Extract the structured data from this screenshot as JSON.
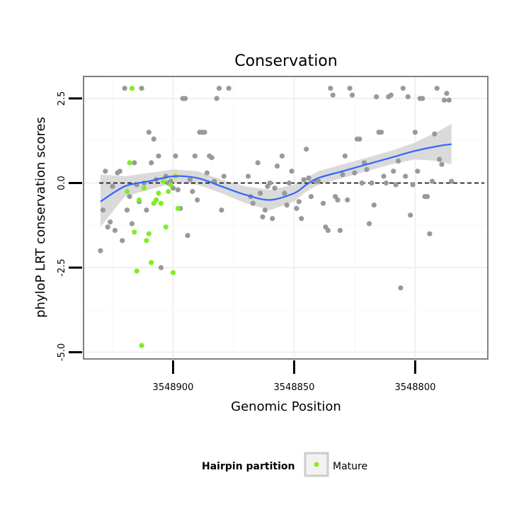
{
  "chart_data": {
    "type": "scatter",
    "title": "Conservation",
    "xlabel": "Genomic Position",
    "ylabel": "phyloP LRT conservation scores",
    "x_reversed": true,
    "xlim": [
      3548937,
      3548770
    ],
    "ylim": [
      -5.2,
      3.15
    ],
    "x_ticks": [
      3548900,
      3548850,
      3548800
    ],
    "x_tick_labels": [
      "3548900",
      "3548850",
      "3548800"
    ],
    "y_ticks": [
      -5.0,
      -2.5,
      0.0,
      2.5
    ],
    "y_tick_labels": [
      "-5.0",
      "-2.5",
      "0.0",
      "2.5"
    ],
    "grid": true,
    "reference_line": {
      "y": 0.0,
      "style": "dashed",
      "color": "#000000"
    },
    "colors": {
      "background_points": "#999999",
      "mature_points": "#80ee22",
      "smooth_line": "#3366ff",
      "confidence_band": "#d3d3d3",
      "panel_border": "#808080",
      "grid": "#f0f0f0"
    },
    "legend": {
      "title": "Hairpin partition",
      "placement": "bottom",
      "entries": [
        {
          "label": "Mature",
          "color": "#80ee22"
        }
      ]
    },
    "series": [
      {
        "color": "#999999",
        "points": [
          [
            3548930,
            -2.0
          ],
          [
            3548929,
            -0.8
          ],
          [
            3548928,
            0.35
          ],
          [
            3548927,
            -1.3
          ],
          [
            3548926,
            -1.15
          ],
          [
            3548925,
            -0.1
          ],
          [
            3548924,
            -1.4
          ],
          [
            3548923,
            0.3
          ],
          [
            3548922,
            0.35
          ],
          [
            3548921,
            -1.7
          ],
          [
            3548920,
            2.8
          ],
          [
            3548919,
            -0.8
          ],
          [
            3548918,
            -0.4
          ],
          [
            3548917,
            -1.2
          ],
          [
            3548916,
            0.6
          ],
          [
            3548915,
            -0.05
          ],
          [
            3548914,
            -0.55
          ],
          [
            3548913,
            2.8
          ],
          [
            3548912,
            0.0
          ],
          [
            3548911,
            -0.8
          ],
          [
            3548910,
            1.5
          ],
          [
            3548909,
            0.6
          ],
          [
            3548908,
            1.3
          ],
          [
            3548907,
            0.1
          ],
          [
            3548906,
            0.8
          ],
          [
            3548905,
            -2.5
          ],
          [
            3548904,
            0.05
          ],
          [
            3548903,
            0.2
          ],
          [
            3548902,
            0.0
          ],
          [
            3548901,
            0.05
          ],
          [
            3548900,
            -0.15
          ],
          [
            3548899,
            0.8
          ],
          [
            3548898,
            -0.2
          ],
          [
            3548897,
            -0.75
          ],
          [
            3548896,
            2.5
          ],
          [
            3548895,
            2.5
          ],
          [
            3548894,
            -1.55
          ],
          [
            3548893,
            0.1
          ],
          [
            3548892,
            -0.25
          ],
          [
            3548891,
            0.8
          ],
          [
            3548890,
            -0.5
          ],
          [
            3548889,
            1.5
          ],
          [
            3548888,
            1.5
          ],
          [
            3548887,
            1.5
          ],
          [
            3548886,
            0.3
          ],
          [
            3548885,
            0.8
          ],
          [
            3548884,
            0.75
          ],
          [
            3548883,
            0.05
          ],
          [
            3548882,
            2.5
          ],
          [
            3548881,
            2.8
          ],
          [
            3548880,
            -0.8
          ],
          [
            3548879,
            0.2
          ],
          [
            3548877,
            2.8
          ],
          [
            3548869,
            0.2
          ],
          [
            3548868,
            -0.4
          ],
          [
            3548867,
            -0.6
          ],
          [
            3548865,
            0.6
          ],
          [
            3548864,
            -0.3
          ],
          [
            3548863,
            -1.0
          ],
          [
            3548862,
            -0.8
          ],
          [
            3548861,
            -0.1
          ],
          [
            3548860,
            0.0
          ],
          [
            3548859,
            -1.05
          ],
          [
            3548858,
            -0.15
          ],
          [
            3548857,
            0.5
          ],
          [
            3548855,
            0.8
          ],
          [
            3548854,
            -0.3
          ],
          [
            3548853,
            -0.65
          ],
          [
            3548852,
            0.0
          ],
          [
            3548851,
            0.35
          ],
          [
            3548849,
            -0.75
          ],
          [
            3548848,
            -0.55
          ],
          [
            3548847,
            -1.05
          ],
          [
            3548846,
            0.1
          ],
          [
            3548845,
            1.0
          ],
          [
            3548844,
            0.15
          ],
          [
            3548843,
            -0.4
          ],
          [
            3548841,
            0.05
          ],
          [
            3548840,
            0.05
          ],
          [
            3548838,
            -0.6
          ],
          [
            3548837,
            -1.3
          ],
          [
            3548836,
            -1.4
          ],
          [
            3548835,
            2.8
          ],
          [
            3548834,
            2.6
          ],
          [
            3548833,
            -0.4
          ],
          [
            3548832,
            -0.5
          ],
          [
            3548831,
            -1.4
          ],
          [
            3548830,
            0.25
          ],
          [
            3548829,
            0.8
          ],
          [
            3548828,
            -0.5
          ],
          [
            3548827,
            2.8
          ],
          [
            3548826,
            2.6
          ],
          [
            3548825,
            0.3
          ],
          [
            3548824,
            1.3
          ],
          [
            3548823,
            1.3
          ],
          [
            3548822,
            0.0
          ],
          [
            3548821,
            0.6
          ],
          [
            3548820,
            0.4
          ],
          [
            3548819,
            -1.2
          ],
          [
            3548818,
            0.0
          ],
          [
            3548817,
            -0.65
          ],
          [
            3548816,
            2.55
          ],
          [
            3548815,
            1.5
          ],
          [
            3548814,
            1.5
          ],
          [
            3548813,
            0.2
          ],
          [
            3548812,
            0.0
          ],
          [
            3548811,
            2.55
          ],
          [
            3548810,
            2.6
          ],
          [
            3548809,
            0.35
          ],
          [
            3548808,
            -0.05
          ],
          [
            3548807,
            0.65
          ],
          [
            3548806,
            -3.1
          ],
          [
            3548805,
            2.8
          ],
          [
            3548804,
            0.2
          ],
          [
            3548803,
            2.55
          ],
          [
            3548802,
            -0.95
          ],
          [
            3548801,
            -0.05
          ],
          [
            3548800,
            1.5
          ],
          [
            3548799,
            0.35
          ],
          [
            3548798,
            2.5
          ],
          [
            3548797,
            2.5
          ],
          [
            3548796,
            -0.4
          ],
          [
            3548795,
            -0.4
          ],
          [
            3548794,
            -1.5
          ],
          [
            3548793,
            0.05
          ],
          [
            3548792,
            1.45
          ],
          [
            3548791,
            2.8
          ],
          [
            3548790,
            0.7
          ],
          [
            3548789,
            0.55
          ],
          [
            3548788,
            2.45
          ],
          [
            3548787,
            2.65
          ],
          [
            3548786,
            2.45
          ],
          [
            3548785,
            0.05
          ]
        ]
      },
      {
        "name": "Mature",
        "color": "#80ee22",
        "points": [
          [
            3548919,
            -0.25
          ],
          [
            3548918,
            0.6
          ],
          [
            3548917,
            2.8
          ],
          [
            3548916,
            -1.45
          ],
          [
            3548915,
            -2.6
          ],
          [
            3548914,
            -0.5
          ],
          [
            3548913,
            -4.8
          ],
          [
            3548912,
            -0.15
          ],
          [
            3548911,
            -1.7
          ],
          [
            3548910,
            -1.5
          ],
          [
            3548909,
            -2.35
          ],
          [
            3548908,
            -0.6
          ],
          [
            3548907,
            -0.5
          ],
          [
            3548906,
            -0.3
          ],
          [
            3548905,
            -0.6
          ],
          [
            3548904,
            0.05
          ],
          [
            3548903,
            -1.3
          ],
          [
            3548902,
            -0.25
          ],
          [
            3548901,
            -0.05
          ],
          [
            3548900,
            -2.65
          ],
          [
            3548899,
            0.2
          ],
          [
            3548898,
            -0.75
          ]
        ]
      }
    ],
    "smooth": {
      "x": [
        3548930,
        3548920,
        3548910,
        3548900,
        3548890,
        3548880,
        3548870,
        3548860,
        3548850,
        3548845,
        3548840,
        3548830,
        3548820,
        3548810,
        3548800,
        3548790,
        3548785
      ],
      "y": [
        -0.55,
        -0.1,
        0.05,
        0.2,
        0.15,
        -0.1,
        -0.35,
        -0.5,
        -0.3,
        -0.05,
        0.15,
        0.35,
        0.55,
        0.75,
        0.95,
        1.1,
        1.15
      ],
      "lower": [
        -1.3,
        -0.4,
        -0.2,
        0.0,
        -0.05,
        -0.3,
        -0.6,
        -0.8,
        -0.55,
        -0.25,
        -0.05,
        0.15,
        0.35,
        0.55,
        0.7,
        0.65,
        0.55
      ],
      "upper": [
        0.25,
        0.2,
        0.3,
        0.4,
        0.35,
        0.1,
        -0.1,
        -0.2,
        -0.05,
        0.15,
        0.35,
        0.55,
        0.75,
        0.95,
        1.2,
        1.55,
        1.75
      ]
    }
  }
}
